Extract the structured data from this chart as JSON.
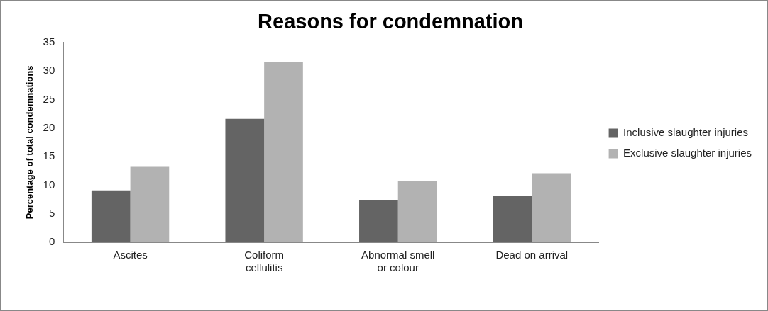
{
  "chart_data": {
    "type": "bar",
    "title": "Reasons for condemnation",
    "ylabel": "Percentage of total condemnations",
    "categories": [
      "Ascites",
      "Coliform cellulitis",
      "Abnormal smell or colour",
      "Dead on arrival"
    ],
    "series": [
      {
        "name": "Inclusive slaughter injuries",
        "color": "#646464",
        "values": [
          9.1,
          21.6,
          7.4,
          8.1
        ]
      },
      {
        "name": "Exclusive slaughter injuries",
        "color": "#b2b2b2",
        "values": [
          13.2,
          31.5,
          10.8,
          12.1
        ]
      }
    ],
    "ylim": [
      0,
      35
    ],
    "yticks": [
      0,
      5,
      10,
      15,
      20,
      25,
      30,
      35
    ],
    "grid": false,
    "legend": "right"
  }
}
